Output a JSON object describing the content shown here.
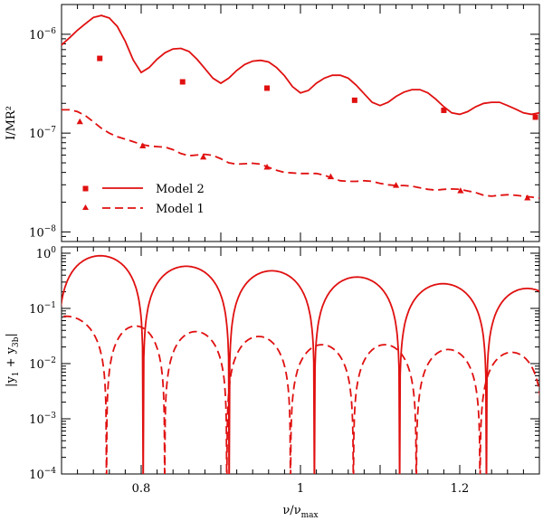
{
  "colors": {
    "series": "#e01010",
    "axis": "#000000"
  },
  "chart_data": [
    {
      "type": "line",
      "panel": "top",
      "ylabel": "I/MR²",
      "yscale": "log",
      "ylim": [
        8e-09,
        2e-06
      ],
      "xlim": [
        0.7,
        1.3
      ],
      "ytick_labels": [
        {
          "mantissa": "10",
          "exp": "−6",
          "value": 1e-06
        },
        {
          "mantissa": "10",
          "exp": "−7",
          "value": 1e-07
        },
        {
          "mantissa": "10",
          "exp": "−8",
          "value": 1e-08
        }
      ],
      "legend": [
        {
          "label": "Model 2",
          "marker": "square",
          "line": "solid"
        },
        {
          "label": "Model 1",
          "marker": "triangle",
          "line": "dashed"
        }
      ],
      "series": [
        {
          "name": "Model 2 curve",
          "style": "solid",
          "x": [
            0.7,
            0.71,
            0.72,
            0.73,
            0.74,
            0.75,
            0.76,
            0.77,
            0.78,
            0.79,
            0.8,
            0.81,
            0.82,
            0.83,
            0.84,
            0.85,
            0.86,
            0.87,
            0.88,
            0.89,
            0.9,
            0.91,
            0.92,
            0.93,
            0.94,
            0.95,
            0.96,
            0.97,
            0.98,
            0.99,
            1.0,
            1.01,
            1.02,
            1.03,
            1.04,
            1.05,
            1.06,
            1.07,
            1.08,
            1.09,
            1.1,
            1.11,
            1.12,
            1.13,
            1.14,
            1.15,
            1.16,
            1.17,
            1.18,
            1.19,
            1.2,
            1.21,
            1.22,
            1.23,
            1.24,
            1.25,
            1.26,
            1.27,
            1.28,
            1.29,
            1.3
          ],
          "y": [
            7.8e-07,
            9.2e-07,
            1.1e-06,
            1.28e-06,
            1.48e-06,
            1.55e-06,
            1.46e-06,
            1.2e-06,
            8.5e-07,
            5.5e-07,
            4.1e-07,
            4.6e-07,
            5.6e-07,
            6.5e-07,
            7.1e-07,
            7.2e-07,
            6.7e-07,
            5.6e-07,
            4.5e-07,
            3.6e-07,
            3.2e-07,
            3.6e-07,
            4.3e-07,
            4.95e-07,
            5.35e-07,
            5.45e-07,
            5.25e-07,
            4.6e-07,
            3.8e-07,
            2.95e-07,
            2.55e-07,
            2.7e-07,
            3.2e-07,
            3.6e-07,
            3.85e-07,
            3.85e-07,
            3.6e-07,
            3.05e-07,
            2.5e-07,
            2.05e-07,
            1.9e-07,
            2.05e-07,
            2.35e-07,
            2.6e-07,
            2.75e-07,
            2.75e-07,
            2.55e-07,
            2.2e-07,
            1.85e-07,
            1.6e-07,
            1.55e-07,
            1.65e-07,
            1.85e-07,
            2e-07,
            2.05e-07,
            2.05e-07,
            1.9e-07,
            1.75e-07,
            1.6e-07,
            1.55e-07,
            1.6e-07
          ]
        },
        {
          "name": "Model 1 curve",
          "style": "dashed",
          "x": [
            0.7,
            0.71,
            0.72,
            0.73,
            0.74,
            0.75,
            0.76,
            0.77,
            0.78,
            0.79,
            0.8,
            0.81,
            0.82,
            0.83,
            0.84,
            0.85,
            0.86,
            0.87,
            0.88,
            0.89,
            0.9,
            0.91,
            0.92,
            0.93,
            0.94,
            0.95,
            0.96,
            0.97,
            0.98,
            0.99,
            1.0,
            1.01,
            1.02,
            1.03,
            1.04,
            1.05,
            1.06,
            1.07,
            1.08,
            1.09,
            1.1,
            1.11,
            1.12,
            1.13,
            1.14,
            1.15,
            1.16,
            1.17,
            1.18,
            1.19,
            1.2,
            1.21,
            1.22,
            1.23,
            1.24,
            1.25,
            1.26,
            1.27,
            1.28,
            1.29,
            1.3
          ],
          "y": [
            1.72e-07,
            1.72e-07,
            1.65e-07,
            1.5e-07,
            1.3e-07,
            1.12e-07,
            1e-07,
            9.2e-08,
            8.7e-08,
            8.2e-08,
            7.7e-08,
            7.4e-08,
            7.3e-08,
            7.2e-08,
            6.8e-08,
            6.2e-08,
            5.9e-08,
            6e-08,
            6.1e-08,
            5.95e-08,
            5.5e-08,
            5e-08,
            4.85e-08,
            4.9e-08,
            4.95e-08,
            4.85e-08,
            4.5e-08,
            4.2e-08,
            4e-08,
            3.95e-08,
            3.9e-08,
            3.9e-08,
            3.9e-08,
            3.75e-08,
            3.5e-08,
            3.3e-08,
            3.25e-08,
            3.25e-08,
            3.3e-08,
            3.25e-08,
            3.1e-08,
            3e-08,
            2.95e-08,
            2.95e-08,
            2.9e-08,
            2.8e-08,
            2.7e-08,
            2.65e-08,
            2.7e-08,
            2.72e-08,
            2.7e-08,
            2.6e-08,
            2.5e-08,
            2.35e-08,
            2.3e-08,
            2.35e-08,
            2.38e-08,
            2.35e-08,
            2.3e-08,
            2.25e-08,
            2.2e-08
          ]
        },
        {
          "name": "Model 2 points",
          "style": "square",
          "x": [
            0.748,
            0.852,
            0.958,
            1.068,
            1.18,
            1.295
          ],
          "y": [
            5.7e-07,
            3.3e-07,
            2.85e-07,
            2.15e-07,
            1.7e-07,
            1.45e-07
          ]
        },
        {
          "name": "Model 1 points",
          "style": "triangle",
          "x": [
            0.723,
            0.802,
            0.878,
            0.958,
            1.038,
            1.12,
            1.201,
            1.285
          ],
          "y": [
            1.3e-07,
            7.4e-08,
            5.7e-08,
            4.5e-08,
            3.6e-08,
            2.95e-08,
            2.6e-08,
            2.2e-08
          ]
        }
      ]
    },
    {
      "type": "line",
      "panel": "bottom",
      "ylabel": "|y1 + y3b|",
      "yscale": "log",
      "ylim": [
        0.0001,
        1.3
      ],
      "xlim": [
        0.7,
        1.3
      ],
      "xlabel": "ν/νmax",
      "xtick_labels": [
        "0.8",
        "1",
        "1.2"
      ],
      "xtick_values": [
        0.8,
        1.0,
        1.2
      ],
      "ytick_labels": [
        {
          "mantissa": "10",
          "exp": "0",
          "value": 1
        },
        {
          "mantissa": "10",
          "exp": "−1",
          "value": 0.1
        },
        {
          "mantissa": "10",
          "exp": "−2",
          "value": 0.01
        },
        {
          "mantissa": "10",
          "exp": "−3",
          "value": 0.001
        },
        {
          "mantissa": "10",
          "exp": "−4",
          "value": 0.0001
        }
      ],
      "series": [
        {
          "name": "Model 2 |y1+y3b|",
          "style": "solid",
          "lobes": [
            {
              "start": 0.695,
              "end": 0.8025,
              "peak": 0.9
            },
            {
              "start": 0.8025,
              "end": 0.9105,
              "peak": 0.58
            },
            {
              "start": 0.9105,
              "end": 1.0175,
              "peak": 0.48
            },
            {
              "start": 1.0175,
              "end": 1.1245,
              "peak": 0.37
            },
            {
              "start": 1.1245,
              "end": 1.2335,
              "peak": 0.28
            },
            {
              "start": 1.2335,
              "end": 1.336,
              "peak": 0.23
            }
          ]
        },
        {
          "name": "Model 1 |y1+y3b|",
          "style": "dashed",
          "lobes": [
            {
              "start": 0.655,
              "end": 0.7565,
              "peak": 0.072
            },
            {
              "start": 0.7565,
              "end": 0.8295,
              "peak": 0.048
            },
            {
              "start": 0.8295,
              "end": 0.9075,
              "peak": 0.038
            },
            {
              "start": 0.9075,
              "end": 0.9875,
              "peak": 0.031
            },
            {
              "start": 0.9875,
              "end": 1.0665,
              "peak": 0.022
            },
            {
              "start": 1.0665,
              "end": 1.1455,
              "peak": 0.022
            },
            {
              "start": 1.1455,
              "end": 1.2255,
              "peak": 0.018
            },
            {
              "start": 1.2255,
              "end": 1.305,
              "peak": 0.016
            }
          ]
        }
      ]
    }
  ]
}
